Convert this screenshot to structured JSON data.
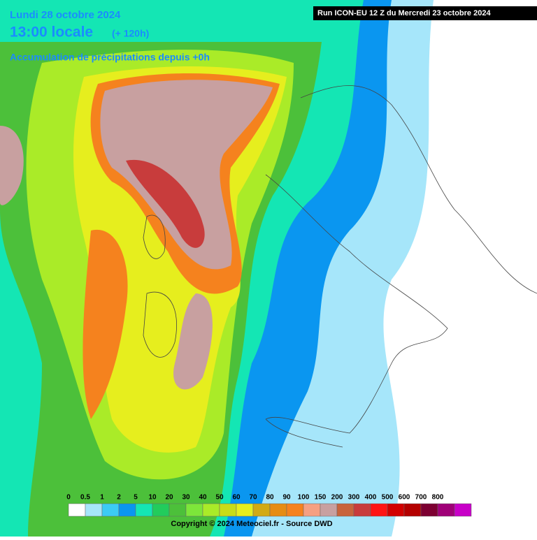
{
  "header": {
    "date": "Lundi 28 octobre 2024",
    "time": "13:00 locale",
    "lead": "(+ 120h)",
    "field": "Accumulation de précipitations depuis +0h",
    "run": "Run ICON-EU 12 Z du Mercredi 23 octobre 2024"
  },
  "legend": {
    "thresholds": [
      0,
      0.5,
      1,
      2,
      5,
      10,
      20,
      30,
      40,
      50,
      60,
      70,
      80,
      90,
      100,
      150,
      200,
      300,
      400,
      500,
      600,
      700,
      800
    ],
    "colors": [
      "#ffffff",
      "#a6e6fa",
      "#3ccbf5",
      "#0a96f0",
      "#14e6b4",
      "#22cc5c",
      "#4cc03a",
      "#7de63a",
      "#aaeb28",
      "#c8dc18",
      "#e6ee1e",
      "#d2aa14",
      "#e68c14",
      "#f5821e",
      "#f5a082",
      "#c8a0a0",
      "#c8643c",
      "#c83c3c",
      "#ff1414",
      "#d20000",
      "#b40000",
      "#7d0032",
      "#a00078",
      "#c800c8"
    ]
  },
  "footer": {
    "copyright": "Copyright © 2024 Meteociel.fr - Source DWD"
  }
}
